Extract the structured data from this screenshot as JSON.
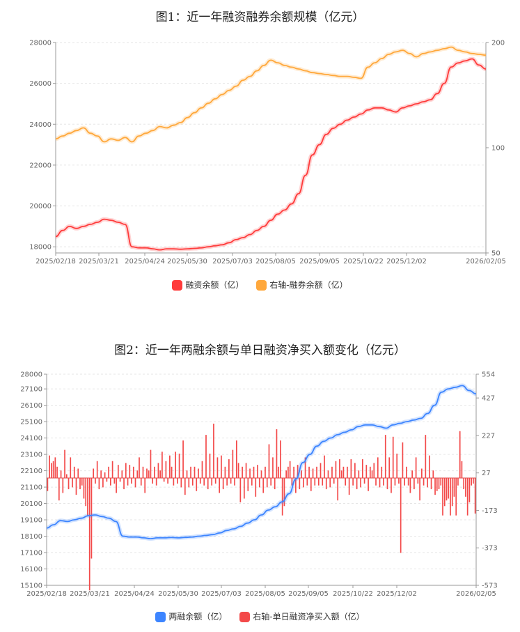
{
  "chart_data": [
    {
      "type": "line",
      "title": "图1：近一年融资融券余额规模（亿元）",
      "x_ticks": [
        "2025/02/18",
        "2025/03/21",
        "2025/04/24",
        "2025/05/30",
        "2025/07/03",
        "2025/08/05",
        "2025/09/05",
        "2025/10/22",
        "2025/12/02",
        "2026/02/05"
      ],
      "y_left_ticks": [
        "18000",
        "20000",
        "22000",
        "24000",
        "26000",
        "28000"
      ],
      "y_right_ticks": [
        "50",
        "100",
        "200"
      ],
      "y_left_lim": [
        17700,
        28000
      ],
      "y_right_scale": "log",
      "y_right_lim": [
        50,
        200
      ],
      "grid": true,
      "legend_position": "bottom",
      "series": [
        {
          "name": "融资余额（亿）",
          "axis": "left",
          "color": "#ff3b3b",
          "values": [
            18500,
            18800,
            19000,
            18900,
            19000,
            19100,
            19200,
            19350,
            19300,
            19200,
            19100,
            18000,
            17950,
            17950,
            17900,
            17850,
            17900,
            17900,
            17880,
            17900,
            17920,
            17950,
            18000,
            18050,
            18100,
            18200,
            18350,
            18450,
            18600,
            18800,
            19000,
            19300,
            19600,
            19800,
            20100,
            20600,
            21500,
            22500,
            23000,
            23500,
            23800,
            24000,
            24200,
            24350,
            24500,
            24700,
            24800,
            24800,
            24700,
            24600,
            24800,
            24900,
            25000,
            25100,
            25200,
            25500,
            26000,
            26800,
            27000,
            27100,
            27200,
            26900,
            26700
          ]
        },
        {
          "name": "右轴-融券余额（亿）",
          "axis": "right",
          "color": "#ffa83c",
          "values": [
            106,
            108,
            110,
            112,
            114,
            110,
            108,
            104,
            106,
            105,
            107,
            104,
            108,
            110,
            112,
            115,
            114,
            116,
            118,
            122,
            126,
            130,
            134,
            138,
            142,
            146,
            150,
            156,
            160,
            166,
            172,
            178,
            175,
            172,
            170,
            168,
            166,
            164,
            163,
            162,
            161,
            160,
            160,
            159,
            158,
            170,
            175,
            180,
            185,
            188,
            190,
            186,
            182,
            186,
            188,
            190,
            192,
            194,
            190,
            188,
            186,
            185,
            184
          ]
        }
      ]
    },
    {
      "type": "bar",
      "title": "图2：近一年两融余额与单日融资净买入额变化（亿元）",
      "x_ticks": [
        "2025/02/18",
        "2025/03/21",
        "2025/04/24",
        "2025/05/30",
        "2025/07/03",
        "2025/08/05",
        "2025/09/05",
        "2025/10/22",
        "2025/12/02",
        "2026/02/05"
      ],
      "y_left_ticks": [
        "15100",
        "16100",
        "17100",
        "18100",
        "19100",
        "20100",
        "21100",
        "22100",
        "23100",
        "24100",
        "25100",
        "26100",
        "27100",
        "28000"
      ],
      "y_right_ticks": [
        "-573",
        "-373",
        "-173",
        "27",
        "227",
        "427",
        "554"
      ],
      "y_left_lim": [
        15100,
        28000
      ],
      "y_right_lim": [
        -573,
        554
      ],
      "grid": true,
      "legend_position": "bottom",
      "line_series": {
        "name": "两融余额（亿）",
        "axis": "left",
        "color": "#3d85ff",
        "values": [
          18600,
          18800,
          19050,
          19000,
          19100,
          19200,
          19350,
          19400,
          19300,
          19200,
          19000,
          18100,
          18050,
          18050,
          18000,
          17950,
          18000,
          18000,
          18020,
          18000,
          18030,
          18050,
          18100,
          18150,
          18200,
          18300,
          18450,
          18550,
          18700,
          18900,
          19100,
          19400,
          19700,
          19900,
          20200,
          20700,
          21600,
          22600,
          23100,
          23600,
          23900,
          24100,
          24300,
          24450,
          24600,
          24800,
          24900,
          24900,
          24800,
          24700,
          24900,
          25000,
          25100,
          25200,
          25300,
          25600,
          26100,
          26900,
          27100,
          27200,
          27300,
          27000,
          26800
        ]
      },
      "bar_series": {
        "name": "右轴-单日融资净买入额（亿）",
        "axis": "right",
        "color": "#f34a4a",
        "values": [
          -70,
          120,
          80,
          90,
          110,
          60,
          -120,
          40,
          -80,
          150,
          20,
          -60,
          110,
          -50,
          60,
          -90,
          50,
          -60,
          -40,
          -110,
          -150,
          -200,
          -600,
          -430,
          50,
          -30,
          90,
          -60,
          40,
          -50,
          30,
          -20,
          60,
          -40,
          90,
          -30,
          -80,
          70,
          -20,
          40,
          -60,
          80,
          -40,
          70,
          -30,
          60,
          -50,
          40,
          110,
          -40,
          60,
          -80,
          50,
          40,
          150,
          -30,
          60,
          -40,
          80,
          40,
          140,
          -20,
          90,
          -30,
          120,
          60,
          -40,
          140,
          -30,
          130,
          -50,
          200,
          -90,
          40,
          -50,
          60,
          -40,
          60,
          -70,
          50,
          -30,
          90,
          -40,
          230,
          -60,
          130,
          -40,
          290,
          -30,
          110,
          -80,
          120,
          -60,
          60,
          -40,
          100,
          -30,
          150,
          -40,
          200,
          80,
          -130,
          60,
          -110,
          80,
          -70,
          50,
          -40,
          60,
          -100,
          70,
          -50,
          40,
          -80,
          60,
          -50,
          180,
          -40,
          110,
          -60,
          260,
          60,
          200,
          -200,
          -150,
          40,
          60,
          90,
          -40,
          60,
          -80,
          70,
          -60,
          40,
          -50,
          110,
          -40,
          60,
          -70,
          50,
          -40,
          60,
          -40,
          80,
          -40,
          120,
          -60,
          40,
          -50,
          60,
          -30,
          90,
          -120,
          100,
          40,
          60,
          -40,
          60,
          -90,
          100,
          -40,
          80,
          -60,
          40,
          -50,
          100,
          -30,
          70,
          -70,
          60,
          40,
          80,
          -40,
          110,
          -50,
          60,
          -40,
          230,
          -60,
          110,
          -80,
          220,
          -40,
          130,
          -30,
          -400,
          190,
          -40,
          60,
          -40,
          -80,
          40,
          -60,
          110,
          -30,
          -120,
          50,
          -40,
          230,
          -50,
          120,
          -60,
          40,
          -90,
          -70,
          -60,
          -40,
          -200,
          -150,
          -120,
          -110,
          -200,
          -150,
          -100,
          -200,
          -40,
          250,
          90,
          -60,
          -100,
          -200,
          -130,
          -40,
          -30,
          -190
        ]
      }
    }
  ]
}
